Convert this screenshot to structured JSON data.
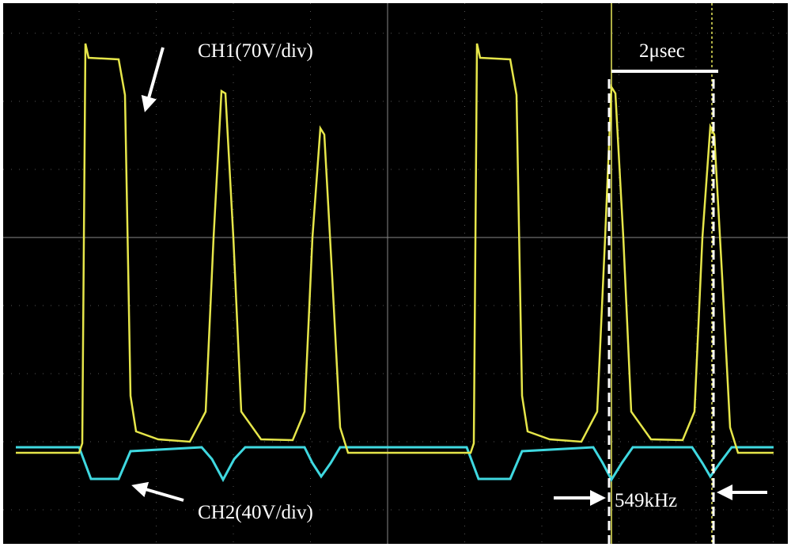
{
  "labels": {
    "ch1": "CH1(70V/div)",
    "ch2": "CH2(40V/div)",
    "time": "2μsec",
    "freq": "549kHz"
  }
}
